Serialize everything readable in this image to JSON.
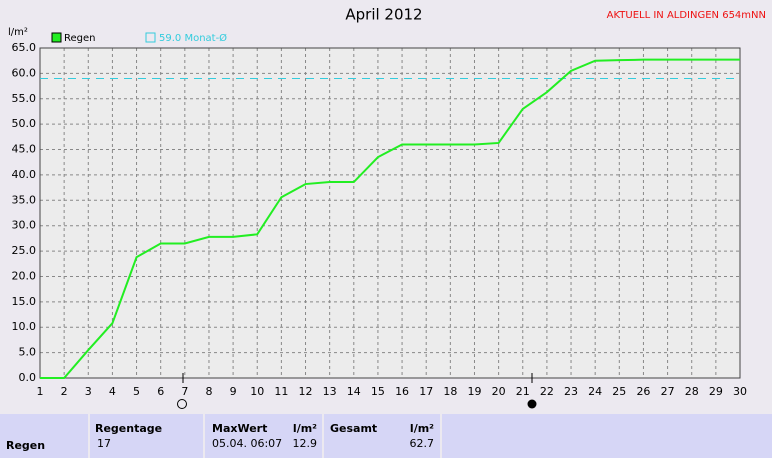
{
  "chart_data": {
    "type": "line",
    "title": "April 2012",
    "subtitle": "AKTUELL IN ALDINGEN 654mNN",
    "y_label": "l/m²",
    "x": [
      1,
      2,
      3,
      4,
      5,
      6,
      7,
      8,
      9,
      10,
      11,
      12,
      13,
      14,
      15,
      16,
      17,
      18,
      19,
      20,
      21,
      22,
      23,
      24,
      25,
      26,
      27,
      28,
      29,
      30
    ],
    "series": [
      {
        "name": "Regen",
        "color": "#22ee22",
        "values": [
          0,
          0,
          5.5,
          10.8,
          23.8,
          26.5,
          26.5,
          27.8,
          27.8,
          28.3,
          35.6,
          38.2,
          38.6,
          38.6,
          43.5,
          46,
          46,
          46,
          46,
          46.3,
          53,
          56.3,
          60.5,
          62.5,
          62.6,
          62.7,
          62.7,
          62.7,
          62.7,
          62.7
        ]
      }
    ],
    "reference": {
      "name": "59.0 Monat-Ø",
      "value": 59,
      "color": "#33ccdd"
    },
    "xlim": [
      1,
      30
    ],
    "xticks": [
      1,
      2,
      3,
      4,
      5,
      6,
      7,
      8,
      9,
      10,
      11,
      12,
      13,
      14,
      15,
      16,
      17,
      18,
      19,
      20,
      21,
      22,
      23,
      24,
      25,
      26,
      27,
      28,
      29,
      30
    ],
    "ylim": [
      0,
      65
    ],
    "yticks": [
      {
        "value": 0,
        "label": "0.0"
      },
      {
        "value": 5,
        "label": "5.0"
      },
      {
        "value": 10,
        "label": "10.0"
      },
      {
        "value": 15,
        "label": "15.0"
      },
      {
        "value": 20,
        "label": "20.0"
      },
      {
        "value": 25,
        "label": "25.0"
      },
      {
        "value": 30,
        "label": "30.0"
      },
      {
        "value": 35,
        "label": "35.0"
      },
      {
        "value": 40,
        "label": "40.0"
      },
      {
        "value": 45,
        "label": "45.0"
      },
      {
        "value": 50,
        "label": "50.0"
      },
      {
        "value": 55,
        "label": "55.0"
      },
      {
        "value": 60,
        "label": "60.0"
      },
      {
        "value": 65,
        "label": "65.0"
      }
    ],
    "grid": true
  },
  "table": {
    "row_label": "Regen",
    "columns": [
      {
        "header": "Regentage",
        "value": 17
      },
      {
        "header": "MaxWert",
        "unit": "l/m²",
        "date": "05.04. 06:07",
        "value": 12.9
      },
      {
        "header": "Gesamt",
        "unit": "l/m²",
        "value": 62.7
      }
    ]
  }
}
